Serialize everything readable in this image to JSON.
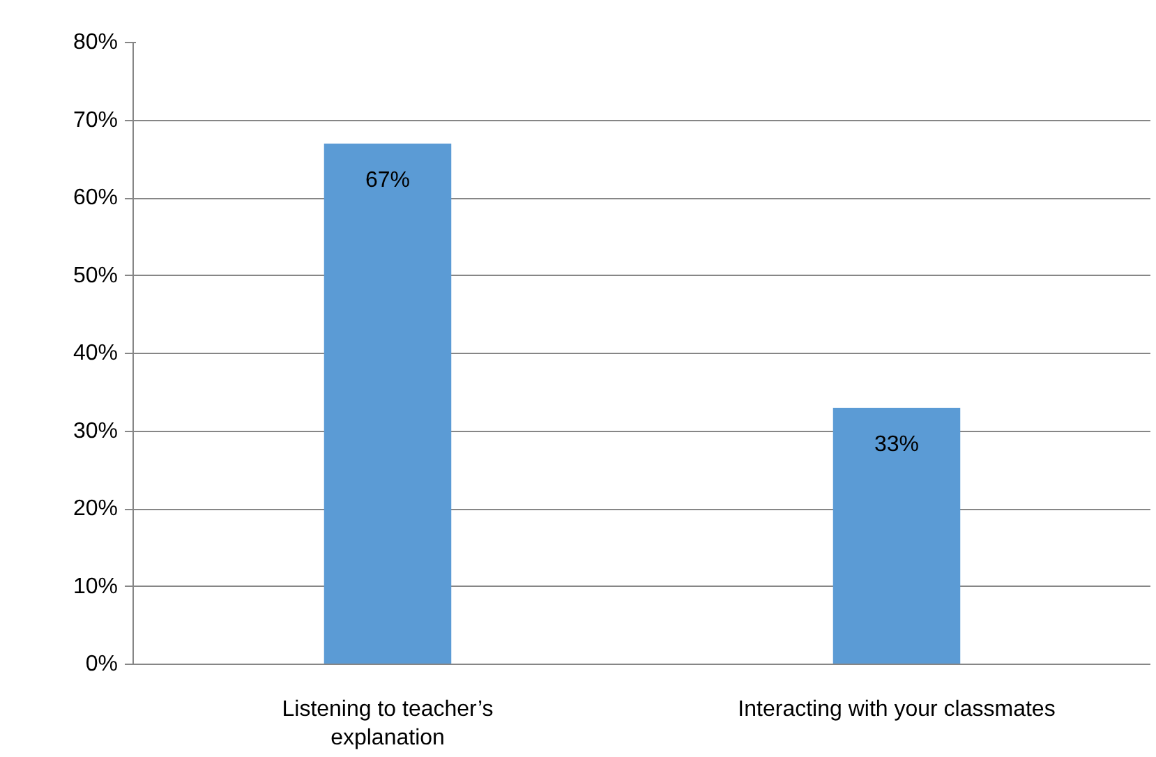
{
  "chart_data": {
    "type": "bar",
    "categories": [
      "Listening to teacher’s explanation",
      "Interacting with your classmates"
    ],
    "values": [
      67,
      33
    ],
    "color": "#5b9bd5",
    "value_labels": [
      "67%",
      "33%"
    ],
    "ylim": [
      0,
      80
    ],
    "yticks": [
      {
        "value": 0,
        "label": "0%"
      },
      {
        "value": 10,
        "label": "10%"
      },
      {
        "value": 20,
        "label": "20%"
      },
      {
        "value": 30,
        "label": "30%"
      },
      {
        "value": 40,
        "label": "40%"
      },
      {
        "value": 50,
        "label": "50%"
      },
      {
        "value": 60,
        "label": "60%"
      },
      {
        "value": 70,
        "label": "70%"
      },
      {
        "value": 80,
        "label": "80%"
      }
    ],
    "grid": "y"
  }
}
